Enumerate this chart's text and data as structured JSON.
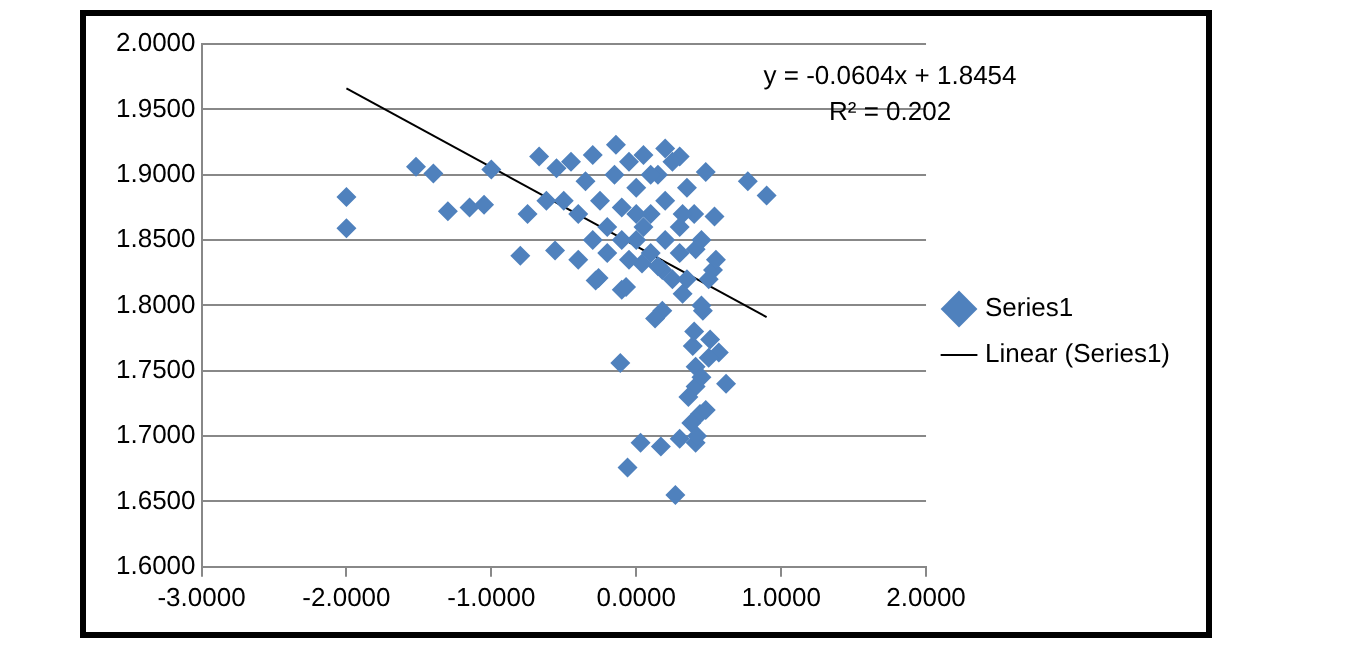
{
  "chart_data": {
    "type": "scatter",
    "xlim": [
      -3,
      2
    ],
    "ylim": [
      1.6,
      2
    ],
    "xticks": [
      {
        "value": -3,
        "label": "-3.0000"
      },
      {
        "value": -2,
        "label": "-2.0000"
      },
      {
        "value": -1,
        "label": "-1.0000"
      },
      {
        "value": 0,
        "label": "0.0000"
      },
      {
        "value": 1,
        "label": "1.0000"
      },
      {
        "value": 2,
        "label": "2.0000"
      }
    ],
    "yticks": [
      {
        "value": 1.6,
        "label": "1.6000"
      },
      {
        "value": 1.65,
        "label": "1.6500"
      },
      {
        "value": 1.7,
        "label": "1.7000"
      },
      {
        "value": 1.75,
        "label": "1.7500"
      },
      {
        "value": 1.8,
        "label": "1.8000"
      },
      {
        "value": 1.85,
        "label": "1.8500"
      },
      {
        "value": 1.9,
        "label": "1.9000"
      },
      {
        "value": 1.95,
        "label": "1.9500"
      },
      {
        "value": 2,
        "label": "2.0000"
      }
    ],
    "grid": "y",
    "legend": "right",
    "annotations": [
      "y = -0.0604x + 1.8454",
      "R² = 0.202"
    ],
    "series": [
      {
        "name": "Series1",
        "type": "scatter",
        "marker": "diamond",
        "color": "#4f81bd",
        "x": [
          -2.0,
          -2.0,
          -1.52,
          -1.4,
          -1.3,
          -1.15,
          -1.05,
          -1.0,
          -0.75,
          -0.8,
          -0.56,
          -0.67,
          -0.26,
          -0.1,
          -0.14,
          0.77,
          0.9,
          0.54,
          0.48,
          0.3,
          -0.11,
          0.03,
          0.17,
          -0.06,
          0.27,
          0.3,
          0.41,
          0.62,
          0.57,
          0.41,
          0.44,
          0.36,
          0.41,
          0.39,
          0.46,
          0.32,
          0.18,
          0.13,
          -0.07,
          -0.28,
          0.51,
          0.53,
          0.41,
          0.04,
          0.18,
          -0.55,
          -0.5,
          -0.45,
          -0.4,
          -0.35,
          -0.3,
          -0.25,
          -0.2,
          -0.15,
          -0.1,
          -0.05,
          0,
          0.05,
          0.1,
          0.15,
          0.2,
          0.25,
          0.3,
          0.35,
          0.4,
          0.45,
          -0.3,
          -0.2,
          0,
          0.1,
          0.2,
          0.3,
          0.05,
          -0.1,
          0.15,
          0.25,
          0.35,
          0.45,
          0.4,
          0.5,
          0.45,
          0.38,
          0.42,
          0.48,
          -0.62,
          -0.4,
          0,
          0.1,
          0.2,
          -0.05,
          0.32,
          0.5,
          0.55
        ],
        "values": [
          1.883,
          1.859,
          1.906,
          1.901,
          1.872,
          1.875,
          1.877,
          1.904,
          1.87,
          1.838,
          1.842,
          1.914,
          1.821,
          1.812,
          1.923,
          1.895,
          1.884,
          1.868,
          1.902,
          1.914,
          1.756,
          1.695,
          1.692,
          1.676,
          1.655,
          1.698,
          1.695,
          1.74,
          1.764,
          1.738,
          1.717,
          1.73,
          1.753,
          1.769,
          1.796,
          1.809,
          1.796,
          1.79,
          1.814,
          1.819,
          1.774,
          1.827,
          1.843,
          1.832,
          1.827,
          1.905,
          1.88,
          1.91,
          1.87,
          1.895,
          1.915,
          1.88,
          1.86,
          1.9,
          1.875,
          1.91,
          1.89,
          1.915,
          1.87,
          1.9,
          1.88,
          1.91,
          1.86,
          1.89,
          1.87,
          1.85,
          1.85,
          1.84,
          1.85,
          1.84,
          1.85,
          1.84,
          1.86,
          1.85,
          1.83,
          1.82,
          1.82,
          1.8,
          1.78,
          1.76,
          1.745,
          1.71,
          1.7,
          1.72,
          1.88,
          1.835,
          1.87,
          1.9,
          1.92,
          1.835,
          1.87,
          1.82,
          1.835
        ]
      },
      {
        "name": "Linear (Series1)",
        "type": "line",
        "marker": "none",
        "line_style": "solid",
        "color": "#000000",
        "x": [
          -2.0,
          0.9
        ],
        "values": [
          1.966,
          1.791
        ]
      }
    ]
  }
}
